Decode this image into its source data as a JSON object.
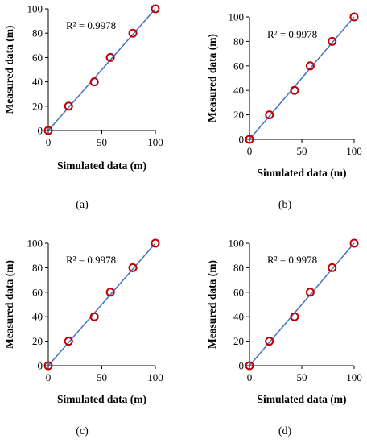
{
  "chart_data": [
    {
      "type": "scatter",
      "panel_label": "(a)",
      "xlabel": "Simulated data (m)",
      "ylabel": "Measured data (m)",
      "xlim": [
        0,
        100
      ],
      "ylim": [
        0,
        100
      ],
      "xticks": [
        0,
        50,
        100
      ],
      "yticks": [
        0,
        20,
        40,
        60,
        80,
        100
      ],
      "annotation": "R² = 0.9978",
      "points": [
        [
          0,
          0
        ],
        [
          19,
          20
        ],
        [
          43,
          40
        ],
        [
          58,
          60
        ],
        [
          79,
          80
        ],
        [
          100,
          100
        ]
      ],
      "fit_line": [
        [
          0,
          0
        ],
        [
          100,
          100
        ]
      ],
      "grid": false,
      "colors": {
        "marker": "#c00000",
        "line": "#4472c4"
      }
    },
    {
      "type": "scatter",
      "panel_label": "(b)",
      "xlabel": "Simulated data (m)",
      "ylabel": "Measured data (m)",
      "xlim": [
        0,
        100
      ],
      "ylim": [
        0,
        100
      ],
      "xticks": [
        0,
        50,
        100
      ],
      "yticks": [
        0,
        20,
        40,
        60,
        80,
        100
      ],
      "annotation": "R² = 0.9978",
      "points": [
        [
          0,
          0
        ],
        [
          19,
          20
        ],
        [
          43,
          40
        ],
        [
          58,
          60
        ],
        [
          79,
          80
        ],
        [
          100,
          100
        ]
      ],
      "fit_line": [
        [
          0,
          0
        ],
        [
          100,
          100
        ]
      ],
      "grid": false,
      "colors": {
        "marker": "#c00000",
        "line": "#4472c4"
      }
    },
    {
      "type": "scatter",
      "panel_label": "(c)",
      "xlabel": "Simulated data (m)",
      "ylabel": "Measured data (m)",
      "xlim": [
        0,
        100
      ],
      "ylim": [
        0,
        100
      ],
      "xticks": [
        0,
        50,
        100
      ],
      "yticks": [
        0,
        20,
        40,
        60,
        80,
        100
      ],
      "annotation": "R² = 0.9978",
      "points": [
        [
          0,
          0
        ],
        [
          19,
          20
        ],
        [
          43,
          40
        ],
        [
          58,
          60
        ],
        [
          79,
          80
        ],
        [
          100,
          100
        ]
      ],
      "fit_line": [
        [
          0,
          0
        ],
        [
          100,
          100
        ]
      ],
      "grid": false,
      "colors": {
        "marker": "#c00000",
        "line": "#4472c4"
      }
    },
    {
      "type": "scatter",
      "panel_label": "(d)",
      "xlabel": "Simulated data (m)",
      "ylabel": "Measured data (m)",
      "xlim": [
        0,
        100
      ],
      "ylim": [
        0,
        100
      ],
      "xticks": [
        0,
        50,
        100
      ],
      "yticks": [
        0,
        20,
        40,
        60,
        80,
        100
      ],
      "annotation": "R² = 0.9978",
      "points": [
        [
          0,
          0
        ],
        [
          19,
          20
        ],
        [
          43,
          40
        ],
        [
          58,
          60
        ],
        [
          79,
          80
        ],
        [
          100,
          100
        ]
      ],
      "fit_line": [
        [
          0,
          0
        ],
        [
          100,
          100
        ]
      ],
      "grid": false,
      "colors": {
        "marker": "#c00000",
        "line": "#4472c4"
      }
    }
  ]
}
